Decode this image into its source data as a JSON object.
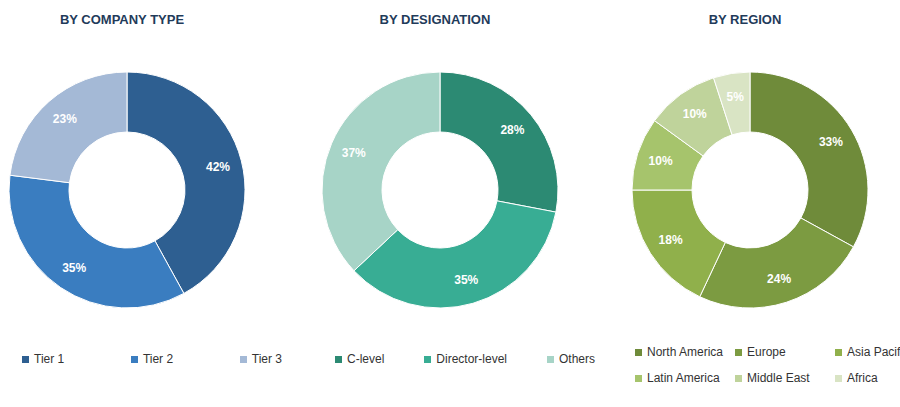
{
  "chart_data": [
    {
      "type": "pie",
      "title": "BY COMPANY TYPE",
      "categories": [
        "Tier 1",
        "Tier 2",
        "Tier 3"
      ],
      "values": [
        42,
        35,
        23
      ],
      "value_labels": [
        "42%",
        "35%",
        "23%"
      ],
      "colors": [
        "#2e5f91",
        "#3a7dc0",
        "#a4b9d6"
      ],
      "data_labels": true,
      "legend": "bottom"
    },
    {
      "type": "pie",
      "title": "BY DESIGNATION",
      "categories": [
        "C-level",
        "Director-level",
        "Others"
      ],
      "values": [
        28,
        35,
        37
      ],
      "value_labels": [
        "28%",
        "35%",
        "37%"
      ],
      "colors": [
        "#2c8a73",
        "#38ad94",
        "#a7d4c7"
      ],
      "data_labels": true,
      "legend": "bottom"
    },
    {
      "type": "pie",
      "title": "BY REGION",
      "categories": [
        "North America",
        "Europe",
        "Asia Pacific",
        "Latin America",
        "Middle East",
        "Africa"
      ],
      "values": [
        33,
        24,
        18,
        10,
        10,
        5
      ],
      "value_labels": [
        "33%",
        "24%",
        "18%",
        "10%",
        "10%",
        "5%"
      ],
      "colors": [
        "#6f8b3a",
        "#7c9b41",
        "#90b04b",
        "#a6c46c",
        "#bfd39b",
        "#d9e4c4"
      ],
      "data_labels": true,
      "legend": "bottom"
    }
  ]
}
